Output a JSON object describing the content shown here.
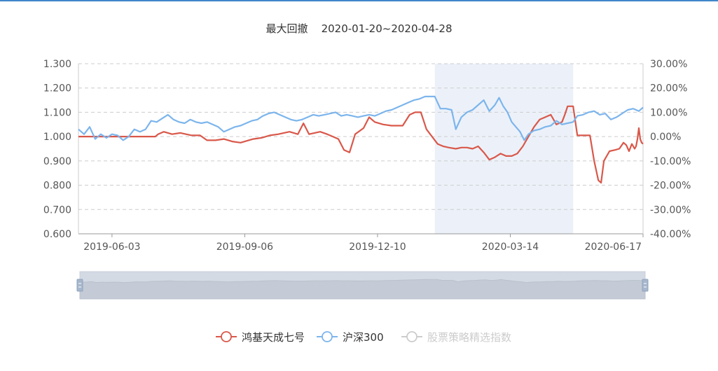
{
  "chart_data": {
    "type": "line",
    "title": "最大回撤    2020-01-20~2020-04-28",
    "y_left_ticks": [
      "1.300",
      "1.200",
      "1.100",
      "1.000",
      "0.900",
      "0.800",
      "0.700",
      "0.600"
    ],
    "y_right_ticks": [
      "30.00%",
      "20.00%",
      "10.00%",
      "0.00%",
      "-10.00%",
      "-20.00%",
      "-30.00%",
      "-40.00%"
    ],
    "ylim_left": [
      0.6,
      1.3
    ],
    "ylim_right": [
      -40,
      30
    ],
    "x_ticks": [
      "2019-06-03",
      "2019-09-06",
      "2019-12-10",
      "2020-03-14",
      "2020-06-17"
    ],
    "x_range": [
      "2019-05-10",
      "2020-06-17"
    ],
    "highlight_range": [
      "2020-01-20",
      "2020-04-28"
    ],
    "grid": true,
    "legend_position": "bottom-center",
    "series": [
      {
        "name": "鸿基天成七号",
        "color": "#d9584a",
        "axis": "left",
        "points": [
          [
            "2019-05-10",
            1.0
          ],
          [
            "2019-06-20",
            1.0
          ],
          [
            "2019-07-04",
            1.0
          ],
          [
            "2019-07-06",
            1.01
          ],
          [
            "2019-07-10",
            1.02
          ],
          [
            "2019-07-16",
            1.01
          ],
          [
            "2019-07-22",
            1.015
          ],
          [
            "2019-07-30",
            1.005
          ],
          [
            "2019-08-05",
            1.005
          ],
          [
            "2019-08-10",
            0.985
          ],
          [
            "2019-08-16",
            0.985
          ],
          [
            "2019-08-22",
            0.99
          ],
          [
            "2019-08-28",
            0.98
          ],
          [
            "2019-09-03",
            0.975
          ],
          [
            "2019-09-06",
            0.98
          ],
          [
            "2019-09-12",
            0.99
          ],
          [
            "2019-09-18",
            0.995
          ],
          [
            "2019-09-24",
            1.005
          ],
          [
            "2019-09-30",
            1.01
          ],
          [
            "2019-10-08",
            1.02
          ],
          [
            "2019-10-14",
            1.01
          ],
          [
            "2019-10-18",
            1.055
          ],
          [
            "2019-10-22",
            1.01
          ],
          [
            "2019-10-30",
            1.02
          ],
          [
            "2019-11-04",
            1.01
          ],
          [
            "2019-11-08",
            1.0
          ],
          [
            "2019-11-12",
            0.99
          ],
          [
            "2019-11-16",
            0.945
          ],
          [
            "2019-11-20",
            0.935
          ],
          [
            "2019-11-24",
            1.01
          ],
          [
            "2019-11-30",
            1.035
          ],
          [
            "2019-12-04",
            1.08
          ],
          [
            "2019-12-08",
            1.06
          ],
          [
            "2019-12-14",
            1.05
          ],
          [
            "2019-12-20",
            1.045
          ],
          [
            "2019-12-28",
            1.045
          ],
          [
            "2020-01-02",
            1.09
          ],
          [
            "2020-01-06",
            1.1
          ],
          [
            "2020-01-10",
            1.1
          ],
          [
            "2020-01-14",
            1.03
          ],
          [
            "2020-01-18",
            1.0
          ],
          [
            "2020-01-22",
            0.97
          ],
          [
            "2020-01-26",
            0.96
          ],
          [
            "2020-01-30",
            0.955
          ],
          [
            "2020-02-04",
            0.95
          ],
          [
            "2020-02-08",
            0.955
          ],
          [
            "2020-02-12",
            0.955
          ],
          [
            "2020-02-16",
            0.95
          ],
          [
            "2020-02-20",
            0.96
          ],
          [
            "2020-02-24",
            0.935
          ],
          [
            "2020-02-28",
            0.905
          ],
          [
            "2020-03-03",
            0.915
          ],
          [
            "2020-03-07",
            0.93
          ],
          [
            "2020-03-11",
            0.92
          ],
          [
            "2020-03-15",
            0.92
          ],
          [
            "2020-03-19",
            0.93
          ],
          [
            "2020-03-23",
            0.96
          ],
          [
            "2020-03-27",
            1.0
          ],
          [
            "2020-03-31",
            1.04
          ],
          [
            "2020-04-04",
            1.07
          ],
          [
            "2020-04-08",
            1.08
          ],
          [
            "2020-04-12",
            1.09
          ],
          [
            "2020-04-16",
            1.05
          ],
          [
            "2020-04-20",
            1.06
          ],
          [
            "2020-04-22",
            1.09
          ],
          [
            "2020-04-24",
            1.125
          ],
          [
            "2020-04-28",
            1.125
          ],
          [
            "2020-05-01",
            1.005
          ],
          [
            "2020-05-10",
            1.005
          ],
          [
            "2020-05-13",
            0.9
          ],
          [
            "2020-05-16",
            0.82
          ],
          [
            "2020-05-18",
            0.81
          ],
          [
            "2020-05-20",
            0.9
          ],
          [
            "2020-05-24",
            0.94
          ],
          [
            "2020-05-28",
            0.945
          ],
          [
            "2020-05-31",
            0.95
          ],
          [
            "2020-06-03",
            0.975
          ],
          [
            "2020-06-05",
            0.965
          ],
          [
            "2020-06-07",
            0.94
          ],
          [
            "2020-06-09",
            0.97
          ],
          [
            "2020-06-11",
            0.95
          ],
          [
            "2020-06-12",
            0.96
          ],
          [
            "2020-06-13",
            0.99
          ],
          [
            "2020-06-14",
            1.035
          ],
          [
            "2020-06-15",
            0.99
          ],
          [
            "2020-06-16",
            0.975
          ],
          [
            "2020-06-17",
            0.97
          ]
        ]
      },
      {
        "name": "沪深300",
        "color": "#7cb5ec",
        "axis": "right",
        "points": [
          [
            "2019-05-10",
            3.0
          ],
          [
            "2019-05-14",
            1.0
          ],
          [
            "2019-05-18",
            4.0
          ],
          [
            "2019-05-22",
            -1.0
          ],
          [
            "2019-05-26",
            1.0
          ],
          [
            "2019-05-30",
            -0.5
          ],
          [
            "2019-06-03",
            1.0
          ],
          [
            "2019-06-07",
            0.5
          ],
          [
            "2019-06-11",
            -1.5
          ],
          [
            "2019-06-15",
            0.0
          ],
          [
            "2019-06-19",
            3.0
          ],
          [
            "2019-06-23",
            2.0
          ],
          [
            "2019-06-27",
            3.0
          ],
          [
            "2019-07-01",
            6.5
          ],
          [
            "2019-07-05",
            6.0
          ],
          [
            "2019-07-09",
            7.5
          ],
          [
            "2019-07-13",
            9.0
          ],
          [
            "2019-07-17",
            7.0
          ],
          [
            "2019-07-21",
            6.0
          ],
          [
            "2019-07-25",
            5.5
          ],
          [
            "2019-07-29",
            7.0
          ],
          [
            "2019-08-02",
            6.0
          ],
          [
            "2019-08-06",
            5.5
          ],
          [
            "2019-08-10",
            6.0
          ],
          [
            "2019-08-14",
            5.0
          ],
          [
            "2019-08-18",
            4.0
          ],
          [
            "2019-08-22",
            2.0
          ],
          [
            "2019-08-26",
            3.0
          ],
          [
            "2019-08-30",
            4.0
          ],
          [
            "2019-09-03",
            4.5
          ],
          [
            "2019-09-07",
            5.5
          ],
          [
            "2019-09-11",
            6.5
          ],
          [
            "2019-09-15",
            7.0
          ],
          [
            "2019-09-19",
            8.5
          ],
          [
            "2019-09-23",
            9.5
          ],
          [
            "2019-09-27",
            10.0
          ],
          [
            "2019-10-01",
            9.0
          ],
          [
            "2019-10-05",
            8.0
          ],
          [
            "2019-10-09",
            7.0
          ],
          [
            "2019-10-13",
            6.5
          ],
          [
            "2019-10-17",
            7.0
          ],
          [
            "2019-10-21",
            8.0
          ],
          [
            "2019-10-25",
            9.0
          ],
          [
            "2019-10-29",
            8.5
          ],
          [
            "2019-11-02",
            9.0
          ],
          [
            "2019-11-06",
            9.5
          ],
          [
            "2019-11-10",
            10.0
          ],
          [
            "2019-11-14",
            8.5
          ],
          [
            "2019-11-18",
            9.0
          ],
          [
            "2019-11-22",
            8.5
          ],
          [
            "2019-11-26",
            8.0
          ],
          [
            "2019-11-30",
            8.5
          ],
          [
            "2019-12-04",
            9.0
          ],
          [
            "2019-12-08",
            8.5
          ],
          [
            "2019-12-12",
            9.5
          ],
          [
            "2019-12-16",
            10.5
          ],
          [
            "2019-12-20",
            11.0
          ],
          [
            "2019-12-24",
            12.0
          ],
          [
            "2019-12-28",
            13.0
          ],
          [
            "2020-01-01",
            14.0
          ],
          [
            "2020-01-05",
            15.0
          ],
          [
            "2020-01-09",
            15.5
          ],
          [
            "2020-01-13",
            16.5
          ],
          [
            "2020-01-17",
            16.5
          ],
          [
            "2020-01-20",
            16.5
          ],
          [
            "2020-01-24",
            11.5
          ],
          [
            "2020-01-28",
            11.5
          ],
          [
            "2020-02-01",
            11.0
          ],
          [
            "2020-02-04",
            3.0
          ],
          [
            "2020-02-08",
            8.0
          ],
          [
            "2020-02-12",
            10.0
          ],
          [
            "2020-02-16",
            11.0
          ],
          [
            "2020-02-20",
            13.0
          ],
          [
            "2020-02-24",
            15.0
          ],
          [
            "2020-02-28",
            10.5
          ],
          [
            "2020-03-03",
            13.0
          ],
          [
            "2020-03-06",
            16.0
          ],
          [
            "2020-03-09",
            12.5
          ],
          [
            "2020-03-12",
            10.0
          ],
          [
            "2020-03-15",
            6.0
          ],
          [
            "2020-03-18",
            4.0
          ],
          [
            "2020-03-21",
            2.0
          ],
          [
            "2020-03-24",
            -1.5
          ],
          [
            "2020-03-27",
            1.0
          ],
          [
            "2020-03-31",
            2.5
          ],
          [
            "2020-04-04",
            3.0
          ],
          [
            "2020-04-08",
            4.0
          ],
          [
            "2020-04-12",
            4.5
          ],
          [
            "2020-04-16",
            6.5
          ],
          [
            "2020-04-20",
            5.0
          ],
          [
            "2020-04-24",
            5.5
          ],
          [
            "2020-04-28",
            6.0
          ],
          [
            "2020-05-01",
            8.5
          ],
          [
            "2020-05-05",
            9.0
          ],
          [
            "2020-05-09",
            10.0
          ],
          [
            "2020-05-13",
            10.5
          ],
          [
            "2020-05-17",
            9.0
          ],
          [
            "2020-05-21",
            9.5
          ],
          [
            "2020-05-25",
            7.0
          ],
          [
            "2020-05-29",
            8.0
          ],
          [
            "2020-06-02",
            9.5
          ],
          [
            "2020-06-06",
            11.0
          ],
          [
            "2020-06-10",
            11.5
          ],
          [
            "2020-06-14",
            10.5
          ],
          [
            "2020-06-17",
            12.0
          ]
        ]
      },
      {
        "name": "股票策略精选指数",
        "color": "#cccccc",
        "axis": "left",
        "visible": false,
        "points": []
      }
    ]
  }
}
